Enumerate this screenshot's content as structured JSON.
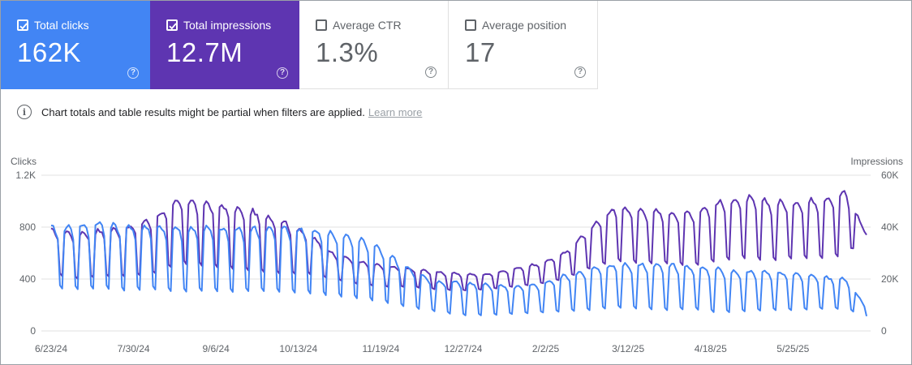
{
  "metrics": [
    {
      "label": "Total clicks",
      "value": "162K",
      "checked": true,
      "color": "#4285f4",
      "help_icon": "help-circle-icon"
    },
    {
      "label": "Total impressions",
      "value": "12.7M",
      "checked": true,
      "color": "#5e35b1",
      "help_icon": "help-circle-icon"
    },
    {
      "label": "Average CTR",
      "value": "1.3%",
      "checked": false,
      "color": "#ffffff",
      "help_icon": "help-circle-icon"
    },
    {
      "label": "Average position",
      "value": "17",
      "checked": false,
      "color": "#ffffff",
      "help_icon": "help-circle-icon"
    }
  ],
  "notice": {
    "icon": "info-icon",
    "text": "Chart totals and table results might be partial when filters are applied.",
    "link": "Learn more"
  },
  "chart_data": {
    "type": "line",
    "left_axis_title": "Clicks",
    "right_axis_title": "Impressions",
    "left_ticks": [
      "0",
      "400",
      "800",
      "1.2K"
    ],
    "right_ticks": [
      "0",
      "20K",
      "40K",
      "60K"
    ],
    "x_tick_labels": [
      "6/23/24",
      "7/30/24",
      "9/6/24",
      "10/13/24",
      "11/19/24",
      "12/27/24",
      "2/2/25",
      "3/12/25",
      "4/18/25",
      "5/25/25"
    ],
    "x_range": [
      "6/23/24",
      "6/26/25"
    ],
    "ylim_left": [
      0,
      1200
    ],
    "ylim_right": [
      0,
      60000
    ],
    "grid": true,
    "note": "Daily values (~369 days) approximated from the plot; weekly weekday/weekend cycle.",
    "series": [
      {
        "name": "Clicks",
        "axis": "left",
        "color": "#4285f4",
        "baseline_weekly": [
          [
            0,
            800,
            330
          ],
          [
            6,
            820,
            320
          ],
          [
            10,
            840,
            330
          ],
          [
            14,
            820,
            310
          ],
          [
            20,
            810,
            320
          ],
          [
            25,
            800,
            300
          ],
          [
            30,
            800,
            310
          ],
          [
            35,
            790,
            300
          ],
          [
            40,
            800,
            310
          ],
          [
            45,
            800,
            300
          ],
          [
            50,
            780,
            290
          ],
          [
            55,
            770,
            270
          ],
          [
            60,
            720,
            250
          ],
          [
            65,
            620,
            220
          ],
          [
            70,
            480,
            180
          ],
          [
            75,
            380,
            150
          ],
          [
            80,
            380,
            120
          ],
          [
            85,
            360,
            120
          ],
          [
            90,
            340,
            130
          ],
          [
            95,
            360,
            140
          ],
          [
            100,
            430,
            150
          ],
          [
            105,
            480,
            160
          ],
          [
            110,
            520,
            180
          ],
          [
            115,
            520,
            170
          ],
          [
            120,
            520,
            160
          ],
          [
            125,
            500,
            170
          ],
          [
            130,
            480,
            140
          ],
          [
            135,
            460,
            150
          ],
          [
            140,
            460,
            160
          ],
          [
            145,
            440,
            160
          ],
          [
            150,
            420,
            170
          ],
          [
            155,
            400,
            170
          ],
          [
            159,
            180,
            110
          ]
        ]
      },
      {
        "name": "Impressions",
        "axis": "right",
        "color": "#5e35b1",
        "baseline_weekly": [
          [
            0,
            39000,
            22000
          ],
          [
            5,
            38000,
            20000
          ],
          [
            10,
            39000,
            21000
          ],
          [
            15,
            40000,
            21000
          ],
          [
            20,
            44000,
            22000
          ],
          [
            25,
            51000,
            26000
          ],
          [
            30,
            50000,
            25000
          ],
          [
            35,
            48000,
            24000
          ],
          [
            40,
            46000,
            23000
          ],
          [
            45,
            43000,
            22000
          ],
          [
            50,
            38000,
            22000
          ],
          [
            55,
            30000,
            20000
          ],
          [
            60,
            27000,
            18000
          ],
          [
            65,
            25000,
            17000
          ],
          [
            70,
            24000,
            17000
          ],
          [
            75,
            23000,
            16000
          ],
          [
            80,
            22000,
            15500
          ],
          [
            85,
            22000,
            16000
          ],
          [
            90,
            24000,
            17000
          ],
          [
            95,
            26000,
            18000
          ],
          [
            100,
            30000,
            20000
          ],
          [
            105,
            40000,
            24000
          ],
          [
            110,
            48000,
            27000
          ],
          [
            115,
            47000,
            26000
          ],
          [
            120,
            46000,
            26000
          ],
          [
            125,
            46000,
            25000
          ],
          [
            130,
            50000,
            27000
          ],
          [
            135,
            52000,
            28000
          ],
          [
            140,
            50000,
            27000
          ],
          [
            145,
            50000,
            28000
          ],
          [
            150,
            51000,
            28000
          ],
          [
            155,
            54000,
            29000
          ],
          [
            159,
            37000,
            37000
          ]
        ]
      }
    ]
  }
}
